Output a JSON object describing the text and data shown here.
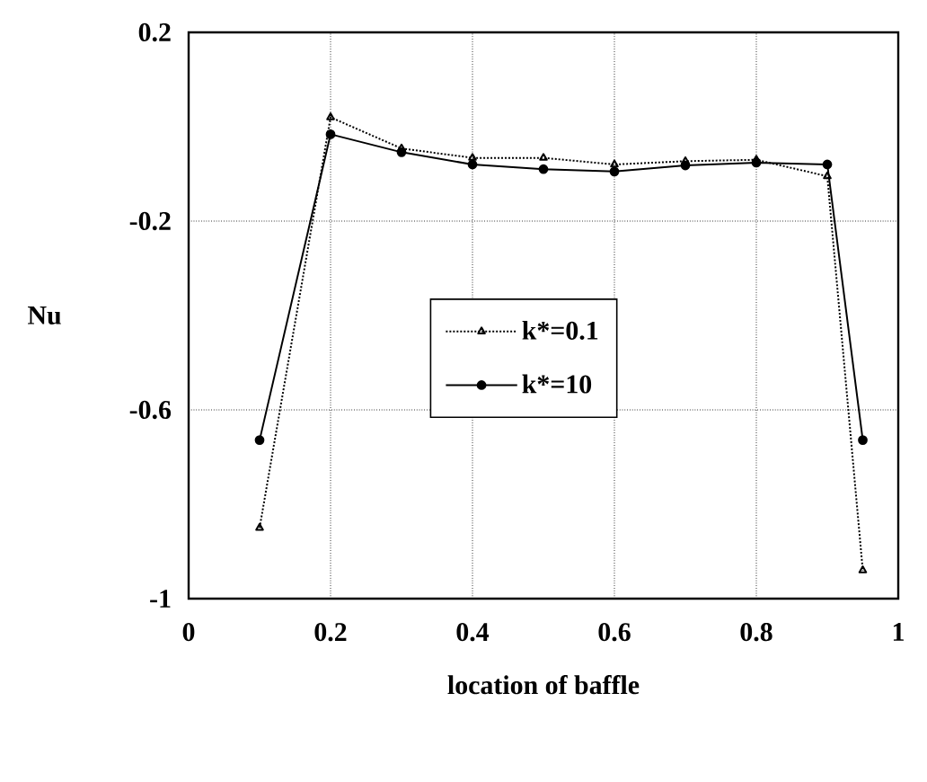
{
  "chart_data": {
    "type": "line",
    "xlabel": "location of baffle",
    "ylabel": "Nu",
    "x": [
      0.1,
      0.2,
      0.3,
      0.4,
      0.5,
      0.6,
      0.7,
      0.8,
      0.9,
      0.95
    ],
    "series": [
      {
        "name": "k*=0.1",
        "color": "#000000",
        "marker": "triangle",
        "line_style": "dotted",
        "values": [
          -0.85,
          0.02,
          -0.046,
          -0.066,
          -0.066,
          -0.08,
          -0.073,
          -0.07,
          -0.105,
          -0.94
        ]
      },
      {
        "name": "k*=10",
        "color": "#000000",
        "marker": "circle",
        "line_style": "solid",
        "values": [
          -0.664,
          -0.016,
          -0.054,
          -0.08,
          -0.09,
          -0.095,
          -0.082,
          -0.076,
          -0.08,
          -0.664
        ]
      }
    ],
    "xlim": [
      0,
      1
    ],
    "ylim": [
      -1,
      0.2
    ],
    "xticks": [
      0,
      0.2,
      0.4,
      0.6,
      0.8,
      1
    ],
    "yticks": [
      -1,
      -0.6,
      -0.2,
      0.2
    ],
    "grid": true,
    "legend": "right"
  }
}
